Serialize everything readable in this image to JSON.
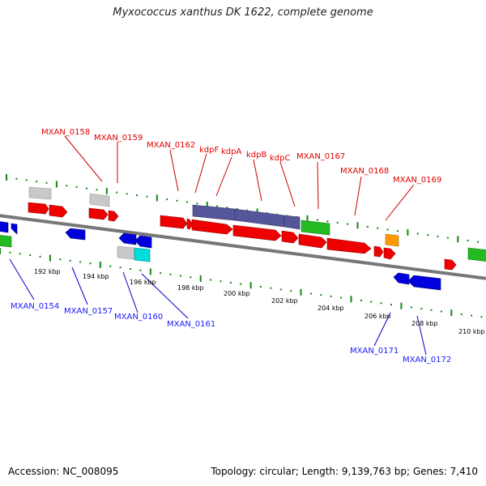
{
  "title": "Myxococcus xanthus DK 1622, complete genome",
  "footer": {
    "accession": "Accession: NC_008095",
    "summary": "Topology: circular; Length: 9,139,763 bp; Genes: 7,410"
  },
  "colors": {
    "forward_gene": "#ee0000",
    "reverse_gene": "#0000dd",
    "operon_kdp": "#555599",
    "rna_green": "#22bb22",
    "pseudo_gray": "#bbbbbb",
    "cyan": "#00dddd",
    "orange": "#ff9900",
    "leader_top": "#cc0000",
    "leader_bottom": "#0000cc",
    "backbone": "#777777",
    "tick_green": "#118811"
  },
  "top_labels": [
    "MXAN_0158",
    "MXAN_0159",
    "MXAN_0162",
    "kdpF",
    "kdpA",
    "kdpB",
    "kdpC",
    "MXAN_0167",
    "MXAN_0168",
    "MXAN_0169"
  ],
  "bottom_labels": [
    "MXAN_0154",
    "MXAN_0157",
    "MXAN_0160",
    "MXAN_0161",
    "MXAN_0171",
    "MXAN_0172"
  ],
  "axis_ticks": [
    "192 kbp",
    "194 kbp",
    "196 kbp",
    "198 kbp",
    "200 kbp",
    "202 kbp",
    "204 kbp",
    "206 kbp",
    "208 kbp",
    "210 kbp"
  ]
}
